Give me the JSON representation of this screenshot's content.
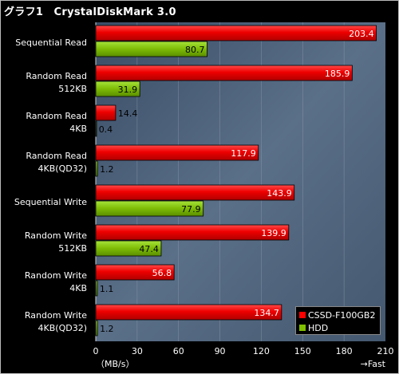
{
  "title": "グラフ1　CrystalDiskMark 3.0",
  "chart_data": {
    "type": "bar",
    "orientation": "horizontal",
    "categories": [
      [
        "Sequential Read"
      ],
      [
        "Random Read",
        "512KB"
      ],
      [
        "Random Read",
        "4KB"
      ],
      [
        "Random Read",
        "4KB(QD32)"
      ],
      [
        "Sequential Write"
      ],
      [
        "Random Write",
        "512KB"
      ],
      [
        "Random Write",
        "4KB"
      ],
      [
        "Random Write",
        "4KB(QD32)"
      ]
    ],
    "series": [
      {
        "name": "CSSD-F100GB2",
        "color": "#ff0000",
        "values": [
          203.4,
          185.9,
          14.4,
          117.9,
          143.9,
          139.9,
          56.8,
          134.7
        ],
        "labels": [
          "203.4",
          "185.9",
          "14.4",
          "117.9",
          "143.9",
          "139.9",
          "56.8",
          "134.7"
        ]
      },
      {
        "name": "HDD",
        "color": "#80c000",
        "values": [
          80.7,
          31.9,
          0.4,
          1.2,
          77.9,
          47.4,
          1.1,
          1.2
        ],
        "labels": [
          "80.7",
          "31.9",
          "0.4",
          "1.2",
          "77.9",
          "47.4",
          "1.1",
          "1.2"
        ]
      }
    ],
    "xlim": [
      0,
      210
    ],
    "xticks": [
      "0",
      "30",
      "60",
      "90",
      "120",
      "150",
      "180",
      "210"
    ],
    "xlabel": "（MB/s）",
    "direction_label": "→Fast",
    "legend_position": "bottom-right",
    "grid": true
  }
}
